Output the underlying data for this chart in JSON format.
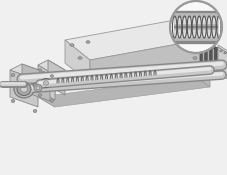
{
  "background_color": "#f0f0f0",
  "figsize": [
    2.28,
    1.75
  ],
  "dpi": 100,
  "body_top": "#e8e8e8",
  "body_front": "#d0d0d0",
  "body_side": "#c0c0c0",
  "base_top": "#d8d8d8",
  "base_front": "#c8c8c8",
  "base_side": "#b8b8b8",
  "bellows_dark": "#505050",
  "bellows_mid": "#787878",
  "end_plate": "#d5d5d5",
  "motor_block_front": "#c8c8c8",
  "motor_block_top": "#dcdcdc",
  "motor_block_side": "#b8b8b8",
  "rod_dark": "#888888",
  "rod_light": "#e0e0e0",
  "screw_thread": "#909090",
  "inset_bg": "#f8f8f8",
  "inset_border": "#aaaaaa"
}
